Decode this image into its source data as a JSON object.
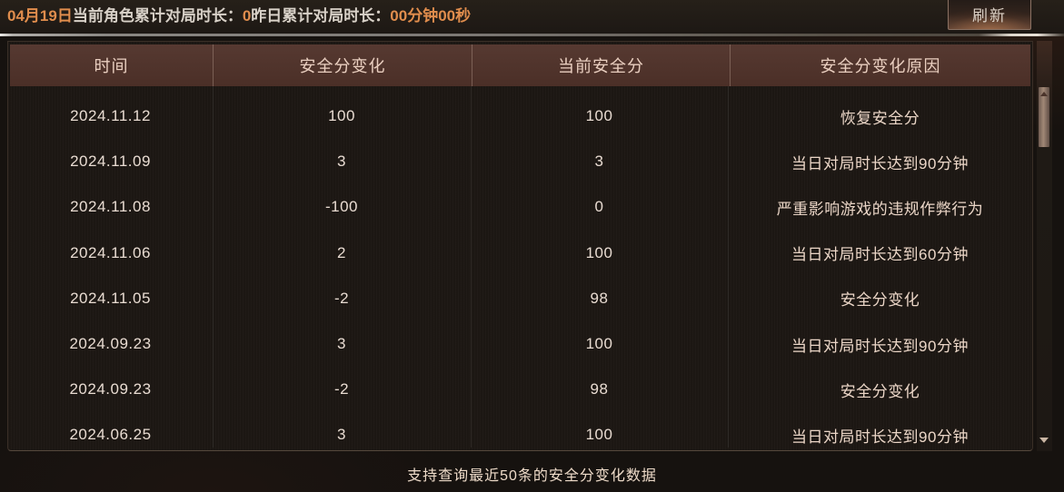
{
  "top_bar": {
    "date_prefix": "04月19日",
    "label_today": "当前角色累计对局时长：",
    "value_today": "0",
    "label_yesterday": "昨日累计对局时长：",
    "value_yesterday": "00分钟00秒",
    "refresh_label": "刷新"
  },
  "table": {
    "columns": [
      "时间",
      "安全分变化",
      "当前安全分",
      "安全分变化原因"
    ],
    "rows": [
      {
        "date": "2024.11.12",
        "change": "100",
        "score": "100",
        "reason": "恢复安全分"
      },
      {
        "date": "2024.11.09",
        "change": "3",
        "score": "3",
        "reason": "当日对局时长达到90分钟"
      },
      {
        "date": "2024.11.08",
        "change": "-100",
        "score": "0",
        "reason": "严重影响游戏的违规作弊行为"
      },
      {
        "date": "2024.11.06",
        "change": "2",
        "score": "100",
        "reason": "当日对局时长达到60分钟"
      },
      {
        "date": "2024.11.05",
        "change": "-2",
        "score": "98",
        "reason": "安全分变化"
      },
      {
        "date": "2024.09.23",
        "change": "3",
        "score": "100",
        "reason": "当日对局时长达到90分钟"
      },
      {
        "date": "2024.09.23",
        "change": "-2",
        "score": "98",
        "reason": "安全分变化"
      },
      {
        "date": "2024.06.25",
        "change": "3",
        "score": "100",
        "reason": "当日对局时长达到90分钟"
      }
    ]
  },
  "footer": {
    "note": "支持查询最近50条的安全分变化数据"
  },
  "colors": {
    "accent_orange": "#e08d4d",
    "header_bg": "#4b2f27",
    "header_text": "#eacfc0",
    "body_text": "#e9dcd2",
    "refresh_border": "#8a7163"
  }
}
